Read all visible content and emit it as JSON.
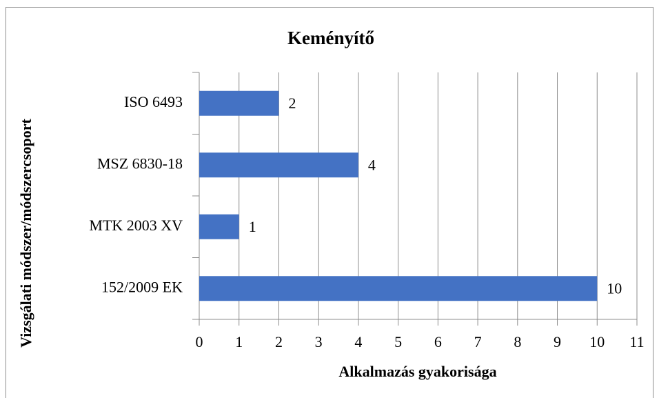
{
  "chart_data": {
    "type": "bar",
    "orientation": "horizontal",
    "title": "Keményítő",
    "x_label": "Alkalmazás gyakorisága",
    "y_label": "Vizsgálati módszer/módszercsoport",
    "categories": [
      "ISO 6493",
      "MSZ 6830-18",
      "MTK 2003 XV",
      "152/2009 EK"
    ],
    "values": [
      2,
      4,
      1,
      10
    ],
    "color": "#4472c4",
    "xlim": [
      0,
      11
    ],
    "xticks": [
      0,
      1,
      2,
      3,
      4,
      5,
      6,
      7,
      8,
      9,
      10,
      11
    ],
    "grid": true
  }
}
